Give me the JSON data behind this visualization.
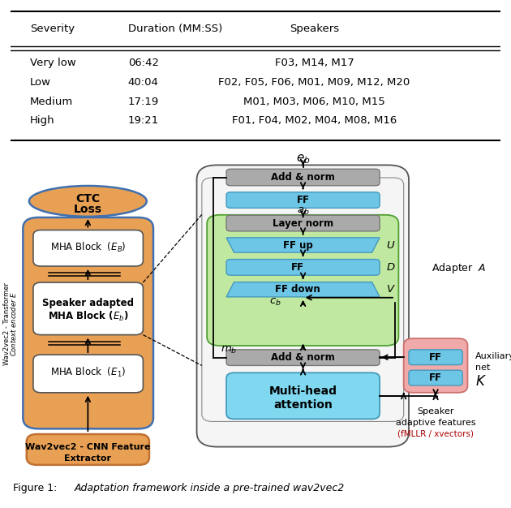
{
  "table_headers": [
    "Severity",
    "Duration (MM:SS)",
    "Speakers"
  ],
  "table_rows": [
    [
      "Very low",
      "06:42",
      "F03, M14, M17"
    ],
    [
      "Low",
      "40:04",
      "F02, F05, F06, M01, M09, M12, M20"
    ],
    [
      "Medium",
      "17:19",
      "M01, M03, M06, M10, M15"
    ],
    [
      "High",
      "19:21",
      "F01, F04, M02, M04, M08, M16"
    ]
  ],
  "colors": {
    "orange": "#E8A055",
    "blue_light": "#6EC6E6",
    "blue_mha": "#80D8F0",
    "green_light": "#C0E8A0",
    "gray_box": "#AAAAAA",
    "pink": "#F0AAAA",
    "white": "#FFFFFF",
    "black": "#000000",
    "outer_bg": "#F8F8F8"
  }
}
